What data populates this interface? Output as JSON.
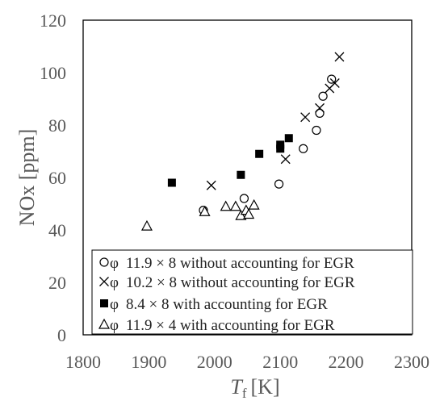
{
  "chart_data": {
    "type": "scatter",
    "xlabel": "T",
    "xlabel_sub": "f",
    "xlabel_unit": "[K]",
    "ylabel": "NOx [ppm]",
    "xlim": [
      1800,
      2300
    ],
    "ylim": [
      0,
      120
    ],
    "x_ticks": [
      "1800",
      "1900",
      "2000",
      "2100",
      "2200",
      "2300"
    ],
    "y_ticks": [
      "0",
      "20",
      "40",
      "60",
      "80",
      "100",
      "120"
    ],
    "grid": false,
    "legend_position": "bottom-right",
    "series": [
      {
        "name": "11.9 × 8 without accounting for EGR",
        "marker": "circle",
        "points": [
          [
            1983,
            47.5
          ],
          [
            2045,
            52
          ],
          [
            2098,
            57.5
          ],
          [
            2135,
            71
          ],
          [
            2155,
            78
          ],
          [
            2160,
            84.5
          ],
          [
            2165,
            91
          ],
          [
            2178,
            97.5
          ]
        ]
      },
      {
        "name": "10.2 × 8 without accounting for EGR",
        "marker": "x",
        "points": [
          [
            1995,
            57
          ],
          [
            2108,
            67
          ],
          [
            2138,
            83
          ],
          [
            2160,
            86.5
          ],
          [
            2175,
            94
          ],
          [
            2183,
            96
          ],
          [
            2190,
            106
          ]
        ]
      },
      {
        "name": "8.4 × 8 with accounting for EGR",
        "marker": "square",
        "points": [
          [
            1935,
            58
          ],
          [
            2040,
            61
          ],
          [
            2068,
            69
          ],
          [
            2100,
            71
          ],
          [
            2100,
            72.5
          ],
          [
            2113,
            75
          ]
        ]
      },
      {
        "name": "11.9 × 4 with accounting for EGR",
        "marker": "triangle",
        "points": [
          [
            1897,
            41.5
          ],
          [
            1985,
            47
          ],
          [
            2017,
            49
          ],
          [
            2032,
            49
          ],
          [
            2040,
            45.5
          ],
          [
            2048,
            47.5
          ],
          [
            2052,
            46
          ],
          [
            2060,
            49.5
          ]
        ]
      }
    ]
  },
  "legend_symbol": "φ"
}
